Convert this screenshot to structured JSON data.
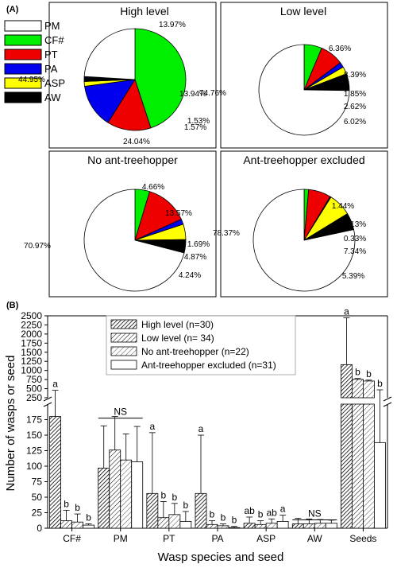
{
  "panel_a_label": "(A)",
  "panel_b_label": "(B)",
  "legend_a": [
    {
      "label": "PM",
      "color": "#ffffff"
    },
    {
      "label": "CF#",
      "color": "#00ee00"
    },
    {
      "label": "PT",
      "color": "#ee0000"
    },
    {
      "label": "PA",
      "color": "#0000ee"
    },
    {
      "label": "ASP",
      "color": "#ffff00"
    },
    {
      "label": "AW",
      "color": "#000000"
    }
  ],
  "chart_data": [
    {
      "type": "pie",
      "title": "High level",
      "slices": [
        {
          "name": "PM",
          "value": 24.04,
          "label": "24.04%"
        },
        {
          "name": "CF#",
          "value": 44.95,
          "label": "44.95%"
        },
        {
          "name": "PT",
          "value": 13.97,
          "label": "13.97%"
        },
        {
          "name": "PA",
          "value": 13.94,
          "label": "13.94%"
        },
        {
          "name": "ASP",
          "value": 1.53,
          "label": "1.53%"
        },
        {
          "name": "AW",
          "value": 1.57,
          "label": "1.57%"
        }
      ]
    },
    {
      "type": "pie",
      "title": "Low level",
      "slices": [
        {
          "name": "PM",
          "value": 74.76,
          "label": "74.76%"
        },
        {
          "name": "CF#",
          "value": 6.36,
          "label": "6.36%"
        },
        {
          "name": "PT",
          "value": 8.39,
          "label": "8.39%"
        },
        {
          "name": "PA",
          "value": 1.85,
          "label": "1.85%"
        },
        {
          "name": "ASP",
          "value": 2.62,
          "label": "2.62%"
        },
        {
          "name": "AW",
          "value": 6.02,
          "label": "6.02%"
        }
      ]
    },
    {
      "type": "pie",
      "title": "No ant-treehopper",
      "slices": [
        {
          "name": "PM",
          "value": 70.97,
          "label": "70.97%"
        },
        {
          "name": "CF#",
          "value": 4.66,
          "label": "4.66%"
        },
        {
          "name": "PT",
          "value": 13.57,
          "label": "13.57%"
        },
        {
          "name": "PA",
          "value": 1.69,
          "label": "1.69%"
        },
        {
          "name": "ASP",
          "value": 4.87,
          "label": "4.87%"
        },
        {
          "name": "AW",
          "value": 4.24,
          "label": "4.24%"
        }
      ]
    },
    {
      "type": "pie",
      "title": "Ant-treehopper excluded",
      "slices": [
        {
          "name": "PM",
          "value": 78.37,
          "label": "78.37%"
        },
        {
          "name": "CF#",
          "value": 1.44,
          "label": "1.44%"
        },
        {
          "name": "PT",
          "value": 7.13,
          "label": "7.13%"
        },
        {
          "name": "PA",
          "value": 0.33,
          "label": "0.33%"
        },
        {
          "name": "ASP",
          "value": 7.34,
          "label": "7.34%"
        },
        {
          "name": "AW",
          "value": 5.39,
          "label": "5.39%"
        }
      ]
    },
    {
      "type": "bar",
      "xlabel": "Wasp species and seed",
      "ylabel": "Number of wasps or seed",
      "categories": [
        "CF#",
        "PM",
        "PT",
        "PA",
        "ASP",
        "AW",
        "Seeds"
      ],
      "y_axis_break": true,
      "ylim_lower": [
        0,
        200
      ],
      "ylim_upper": [
        250,
        2500
      ],
      "yticks_lower": [
        "0",
        "25",
        "50",
        "75",
        "100",
        "125",
        "150",
        "175"
      ],
      "yticks_upper": [
        "250",
        "500",
        "750",
        "1000",
        "1250",
        "1500",
        "1750",
        "2000",
        "2250",
        "2500"
      ],
      "series": [
        {
          "name": "High level (n=30)",
          "values": [
            180,
            97,
            56,
            56,
            8,
            7,
            1160
          ],
          "errors": [
            275,
            68,
            98,
            94,
            10,
            9,
            1285
          ]
        },
        {
          "name": "Low level (n= 34)",
          "values": [
            12,
            126,
            17,
            6,
            6,
            7,
            755
          ],
          "errors": [
            17,
            54,
            26,
            6,
            6,
            8,
            25
          ]
        },
        {
          "name": "No ant-treehopper (n=22)",
          "values": [
            10,
            110,
            22,
            4,
            8,
            8,
            710
          ],
          "errors": [
            13,
            42,
            18,
            3,
            7,
            6,
            25
          ]
        },
        {
          "name": "Ant-treehopper excluded (n=31)",
          "values": [
            5,
            107,
            11,
            1,
            11,
            8,
            138
          ],
          "errors": [
            2,
            57,
            16,
            2,
            10,
            5,
            330
          ]
        }
      ],
      "significance": [
        {
          "category": "CF#",
          "letters": [
            "a",
            "b",
            "b",
            "b"
          ]
        },
        {
          "category": "PM",
          "letters": [],
          "bracket": "NS"
        },
        {
          "category": "PT",
          "letters": [
            "a",
            "b",
            "b",
            "b"
          ]
        },
        {
          "category": "PA",
          "letters": [
            "a",
            "b",
            "b",
            "b"
          ]
        },
        {
          "category": "ASP",
          "letters": [
            "ab",
            "b",
            "ab",
            "a"
          ]
        },
        {
          "category": "AW",
          "letters": [],
          "bracket": "NS"
        },
        {
          "category": "Seeds",
          "letters": [
            "a",
            "b",
            "b",
            "b"
          ]
        }
      ]
    }
  ]
}
